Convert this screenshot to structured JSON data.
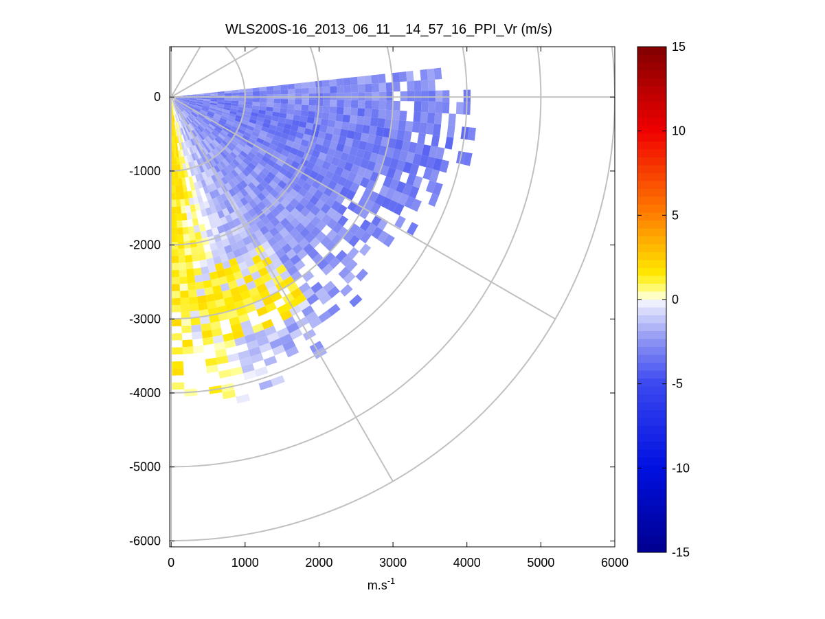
{
  "chart_data": {
    "type": "heatmap",
    "subtype": "ppi-polar-scan",
    "title": "WLS200S-16_2013_06_11__14_57_16_PPI_Vr (m/s)",
    "xlabel": "m.s",
    "xlabel_superscript": "-1",
    "ylabel": "",
    "xlim": [
      -20,
      6000
    ],
    "ylim": [
      -6080,
      680
    ],
    "x_ticks": [
      0,
      1000,
      2000,
      3000,
      4000,
      5000,
      6000
    ],
    "y_ticks": [
      0,
      -1000,
      -2000,
      -3000,
      -4000,
      -5000,
      -6000
    ],
    "x_tick_labels": [
      "0",
      "1000",
      "2000",
      "3000",
      "4000",
      "5000",
      "6000"
    ],
    "y_tick_labels": [
      "0",
      "-1000",
      "-2000",
      "-3000",
      "-4000",
      "-5000",
      "-6000"
    ],
    "polar_grid": {
      "range_rings": [
        1000,
        2000,
        3000,
        4000,
        5000,
        6000
      ],
      "radials_deg": [
        0,
        -30,
        -60,
        -90,
        30,
        60,
        90
      ],
      "color": "#c0c0c0"
    },
    "colorbar": {
      "range": [
        -15,
        15
      ],
      "ticks": [
        15,
        10,
        5,
        0,
        -5,
        -10,
        -15
      ],
      "tick_labels": [
        "15",
        "10",
        "5",
        "0",
        "-5",
        "-10",
        "-15"
      ],
      "stops": [
        {
          "v": -15,
          "c": "#00008f"
        },
        {
          "v": -10,
          "c": "#0010e0"
        },
        {
          "v": -5,
          "c": "#3a48f0"
        },
        {
          "v": -2.5,
          "c": "#8a92f4"
        },
        {
          "v": -0.4,
          "c": "#e4e6fc"
        },
        {
          "v": 0,
          "c": "#ffffff"
        },
        {
          "v": 0.4,
          "c": "#ffff99"
        },
        {
          "v": 1.5,
          "c": "#ffea00"
        },
        {
          "v": 5,
          "c": "#ff8000"
        },
        {
          "v": 10,
          "c": "#f00000"
        },
        {
          "v": 15,
          "c": "#800000"
        }
      ]
    },
    "scan": {
      "azimuth_range_deg": [
        -90,
        5
      ],
      "max_range_by_azimuth": [
        {
          "az": 5,
          "r": 3600
        },
        {
          "az": -5,
          "r": 3800
        },
        {
          "az": -15,
          "r": 3800
        },
        {
          "az": -25,
          "r": 3500
        },
        {
          "az": -35,
          "r": 3300
        },
        {
          "az": -45,
          "r": 3400
        },
        {
          "az": -55,
          "r": 3600
        },
        {
          "az": -65,
          "r": 3800
        },
        {
          "az": -75,
          "r": 3900
        },
        {
          "az": -85,
          "r": 3700
        },
        {
          "az": -90,
          "r": 3600
        }
      ],
      "velocity_by_azimuth_ms": [
        {
          "az": 5,
          "v": -2.6
        },
        {
          "az": -10,
          "v": -3.2
        },
        {
          "az": -25,
          "v": -3.0
        },
        {
          "az": -40,
          "v": -2.6
        },
        {
          "az": -55,
          "v": -2.2
        },
        {
          "az": -70,
          "v": -1.2
        },
        {
          "az": -80,
          "v": 0.5
        },
        {
          "az": -88,
          "v": 1.2
        }
      ],
      "positive_band": {
        "az_range_deg": [
          -85,
          -55
        ],
        "r_range": [
          2300,
          3300
        ],
        "v": 1.1
      },
      "near_edge_band": {
        "az_range_deg": [
          -90,
          -82
        ],
        "r_range": [
          80,
          1300
        ],
        "v": 1.3
      }
    }
  }
}
